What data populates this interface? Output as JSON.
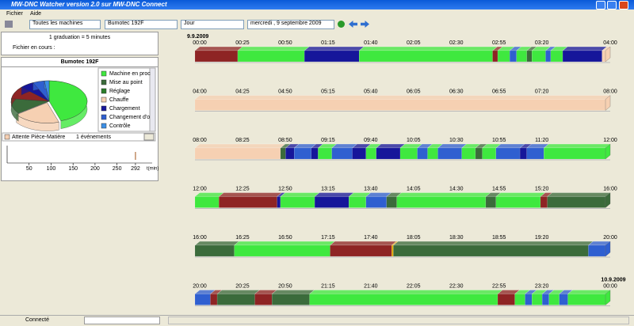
{
  "window": {
    "title": "MW-DNC Watcher version 2.0 sur MW-DNC Connect"
  },
  "menu": [
    "Fichier",
    "Aide"
  ],
  "toolbar": {
    "machines": "Toutes les machines",
    "machine": "Bumotec 192F",
    "period": "Jour",
    "date": "mercredi ,  9 septembre 2009"
  },
  "info": {
    "graduation": "1 graduation = 5 minutes",
    "file": "Fichier en cours :"
  },
  "panel": {
    "title": "Bumotec 192F",
    "states": [
      {
        "name": "Machine en proc",
        "color": "#3fe83f"
      },
      {
        "name": "Mise au point",
        "color": "#3b6b3b"
      },
      {
        "name": "Réglage",
        "color": "#2a7d2a"
      },
      {
        "name": "Chauffe",
        "color": "#f6d0b2"
      },
      {
        "name": "Chargement",
        "color": "#16169a"
      },
      {
        "name": "Changement d'o",
        "color": "#2f5fd0"
      },
      {
        "name": "Contrôle",
        "color": "#3c8fe6"
      },
      {
        "color": "#8e2424"
      },
      {
        "color": "#e0a400"
      }
    ],
    "pie": [
      [
        0,
        45
      ],
      [
        3,
        20
      ],
      [
        1,
        12
      ],
      [
        7,
        10
      ],
      [
        4,
        6
      ],
      [
        5,
        5
      ],
      [
        6,
        2
      ]
    ],
    "event": {
      "name": "Attente Pièce-Matière",
      "count": "1 événements",
      "xlim": [
        0,
        330
      ],
      "xticks": [
        50,
        100,
        150,
        200,
        250,
        292
      ],
      "unit": "t(min)",
      "value": 292
    }
  },
  "timeline": {
    "start_date": "9.9.2009",
    "end_date": "10.9.2009",
    "rows": [
      {
        "ticks": [
          "00:00",
          "00:25",
          "00:50",
          "01:15",
          "01:40",
          "02:05",
          "02:30",
          "02:55",
          "03:20",
          "04:00"
        ],
        "segments": [
          [
            7,
            25
          ],
          [
            0,
            39
          ],
          [
            4,
            32
          ],
          [
            0,
            78
          ],
          [
            7,
            3
          ],
          [
            0,
            7
          ],
          [
            5,
            4
          ],
          [
            0,
            6
          ],
          [
            1,
            3
          ],
          [
            0,
            8
          ],
          [
            5,
            3
          ],
          [
            0,
            7
          ],
          [
            4,
            23
          ],
          [
            3,
            2
          ]
        ]
      },
      {
        "ticks": [
          "04:00",
          "04:25",
          "04:50",
          "05:15",
          "05:40",
          "06:05",
          "06:30",
          "06:55",
          "07:20",
          "08:00"
        ],
        "segments": [
          [
            3,
            240
          ]
        ]
      },
      {
        "ticks": [
          "08:00",
          "08:25",
          "08:50",
          "09:15",
          "09:40",
          "10:05",
          "10:30",
          "10:55",
          "11:20",
          "12:00"
        ],
        "segments": [
          [
            3,
            50
          ],
          [
            1,
            3
          ],
          [
            4,
            5
          ],
          [
            5,
            10
          ],
          [
            4,
            4
          ],
          [
            0,
            8
          ],
          [
            5,
            12
          ],
          [
            4,
            8
          ],
          [
            0,
            6
          ],
          [
            4,
            14
          ],
          [
            0,
            10
          ],
          [
            5,
            6
          ],
          [
            0,
            6
          ],
          [
            5,
            14
          ],
          [
            0,
            8
          ],
          [
            1,
            4
          ],
          [
            0,
            8
          ],
          [
            5,
            14
          ],
          [
            4,
            4
          ],
          [
            5,
            10
          ],
          [
            0,
            36
          ]
        ]
      },
      {
        "ticks": [
          "12:00",
          "12:25",
          "12:50",
          "13:15",
          "13:40",
          "14:05",
          "14:30",
          "14:55",
          "15:20",
          "16:00"
        ],
        "segments": [
          [
            0,
            14
          ],
          [
            7,
            34
          ],
          [
            4,
            2
          ],
          [
            0,
            20
          ],
          [
            4,
            20
          ],
          [
            0,
            10
          ],
          [
            5,
            12
          ],
          [
            1,
            6
          ],
          [
            0,
            52
          ],
          [
            1,
            6
          ],
          [
            0,
            26
          ],
          [
            7,
            4
          ],
          [
            1,
            34
          ]
        ]
      },
      {
        "ticks": [
          "16:00",
          "16:25",
          "16:50",
          "17:15",
          "17:40",
          "18:05",
          "18:30",
          "18:55",
          "19:20",
          "20:00"
        ],
        "segments": [
          [
            1,
            23
          ],
          [
            0,
            56
          ],
          [
            7,
            36
          ],
          [
            8,
            1
          ],
          [
            1,
            114
          ],
          [
            5,
            10
          ]
        ]
      },
      {
        "ticks": [
          "20:00",
          "20:25",
          "20:50",
          "21:15",
          "21:40",
          "22:05",
          "22:30",
          "22:55",
          "23:20",
          "00:00"
        ],
        "segments": [
          [
            5,
            9
          ],
          [
            7,
            4
          ],
          [
            1,
            22
          ],
          [
            7,
            10
          ],
          [
            1,
            22
          ],
          [
            0,
            110
          ],
          [
            7,
            10
          ],
          [
            0,
            6
          ],
          [
            5,
            4
          ],
          [
            0,
            6
          ],
          [
            5,
            4
          ],
          [
            0,
            6
          ],
          [
            5,
            5
          ],
          [
            0,
            22
          ]
        ]
      }
    ]
  },
  "status": "Connecté"
}
